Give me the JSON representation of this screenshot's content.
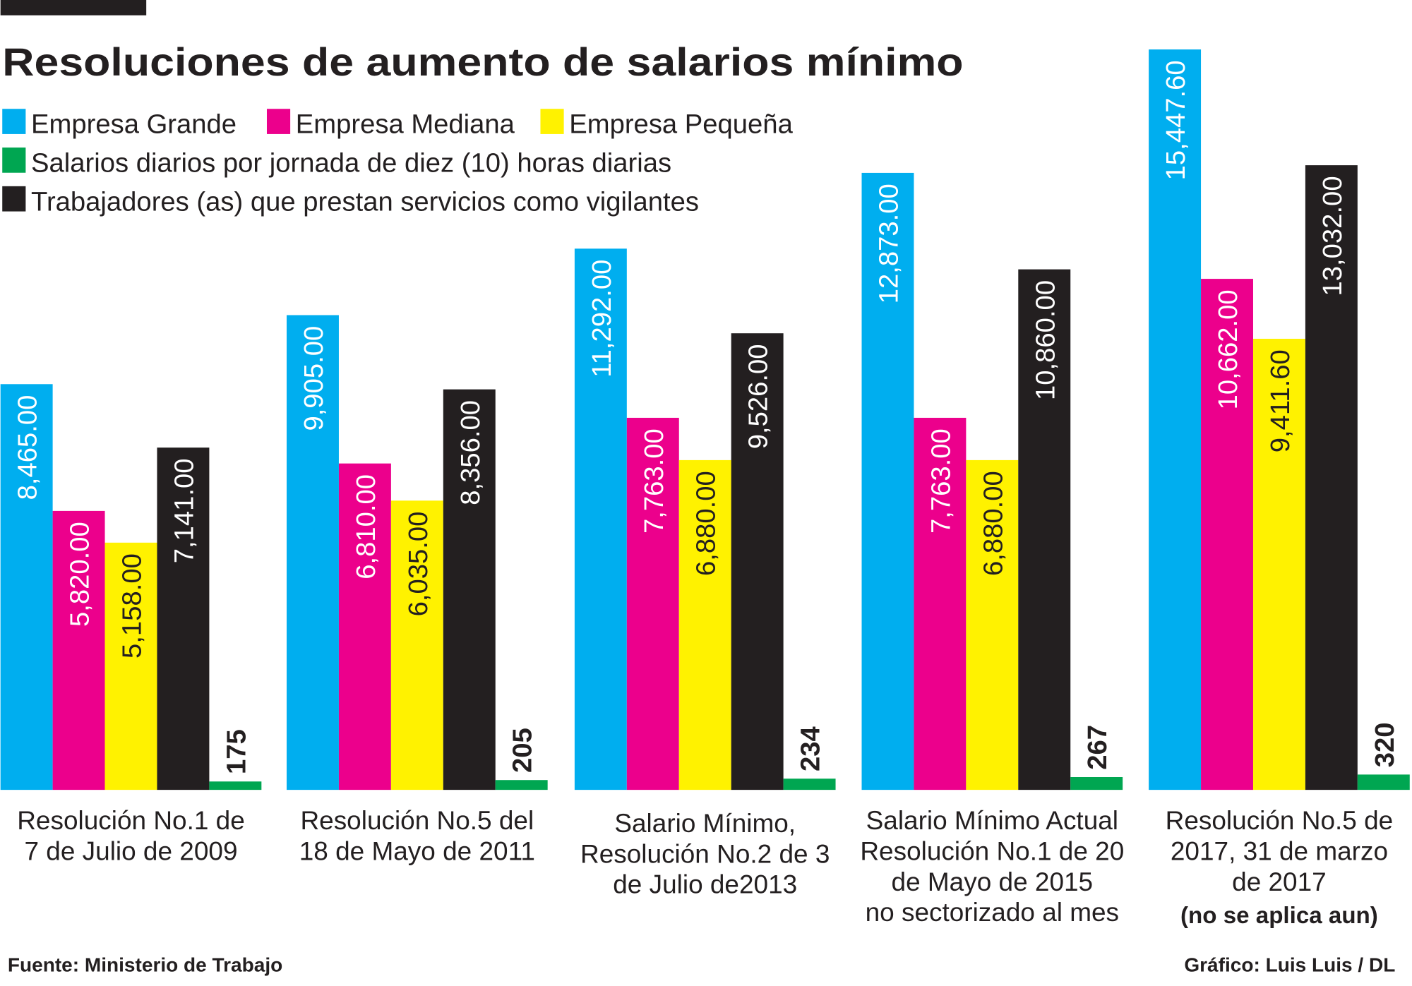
{
  "chart_data": {
    "type": "bar",
    "title": "Resoluciones de aumento de salarios mínimo",
    "categories": [
      [
        "Resolución No.1 de",
        "7 de Julio de 2009"
      ],
      [
        "Resolución No.5 del",
        "18 de Mayo de 2011"
      ],
      [
        "Salario Mínimo,",
        "Resolución No.2 de 3",
        "de Julio de2013"
      ],
      [
        "Salario Mínimo Actual",
        "Resolución No.1 de 20",
        "de Mayo de 2015",
        "no sectorizado al mes"
      ],
      [
        "Resolución No.5 de",
        "2017, 31 de marzo",
        "de 2017"
      ]
    ],
    "category_note": [
      "",
      "",
      "",
      "",
      "(no se aplica aun)"
    ],
    "series": [
      {
        "name": "Empresa Grande",
        "color": "#00aeef",
        "label_color": "#ffffff",
        "values": [
          8465.0,
          9905.0,
          11292.0,
          12873.0,
          15447.6
        ],
        "labels": [
          "8,465.00",
          "9,905.00",
          "11,292.00",
          "12,873.00",
          "15,447.60"
        ]
      },
      {
        "name": "Empresa Mediana",
        "color": "#ec008c",
        "label_color": "#ffffff",
        "values": [
          5820.0,
          6810.0,
          7763.0,
          7763.0,
          10662.0
        ],
        "labels": [
          "5,820.00",
          "6,810.00",
          "7,763.00",
          "7,763.00",
          "10,662.00"
        ]
      },
      {
        "name": "Empresa Pequeña",
        "color": "#fff200",
        "label_color": "#231f20",
        "values": [
          5158.0,
          6035.0,
          6880.0,
          6880.0,
          9411.6
        ],
        "labels": [
          "5,158.00",
          "6,035.00",
          "6,880.00",
          "6,880.00",
          "9,411.60"
        ]
      },
      {
        "name": "Trabajadores (as) que prestan servicios como vigilantes",
        "color": "#231f20",
        "label_color": "#ffffff",
        "values": [
          7141.0,
          8356.0,
          9526.0,
          10860.0,
          13032.0
        ],
        "labels": [
          "7,141.00",
          "8,356.00",
          "9,526.00",
          "10,860.00",
          "13,032.00"
        ]
      },
      {
        "name": "Salarios diarios por jornada de diez (10) horas diarias",
        "color": "#00a651",
        "label_color": "#231f20",
        "values": [
          175,
          205,
          234,
          267,
          320
        ],
        "labels": [
          "175",
          "205",
          "234",
          "267",
          "320"
        ]
      }
    ],
    "legend_order": [
      [
        "Empresa Grande",
        "Empresa Mediana",
        "Empresa Pequeña"
      ],
      [
        "Salarios diarios por jornada de diez (10) horas diarias"
      ],
      [
        "Trabajadores (as) que prestan servicios como vigilantes"
      ]
    ],
    "legend_placement": "top-left",
    "grid": false,
    "ylim": [
      0,
      15500
    ]
  },
  "footer": {
    "source": "Fuente: Ministerio de Trabajo",
    "credit": "Gráfico: Luis Luis / DL"
  }
}
